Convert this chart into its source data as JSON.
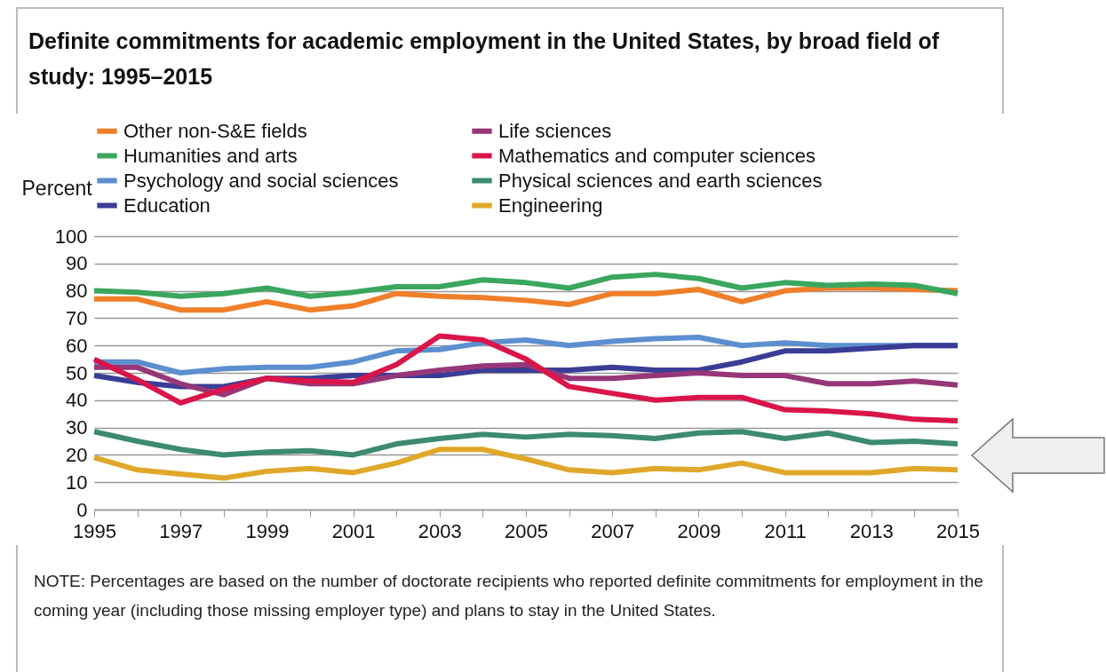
{
  "chart_data": {
    "type": "line",
    "title": "Definite commitments for academic employment in the United States, by broad field of study: 1995–2015",
    "ylabel": "Percent",
    "x": [
      1995,
      1996,
      1997,
      1998,
      1999,
      2000,
      2001,
      2002,
      2003,
      2004,
      2005,
      2006,
      2007,
      2008,
      2009,
      2010,
      2011,
      2012,
      2013,
      2014,
      2015
    ],
    "series": [
      {
        "name": "Other non-S&E fields",
        "color": "#f07f2a",
        "values": [
          77,
          77,
          73,
          73,
          76,
          73,
          74.5,
          79,
          78,
          77.5,
          76.5,
          75,
          79,
          79,
          80.5,
          76,
          80,
          81,
          81,
          80.5,
          80
        ]
      },
      {
        "name": "Humanities and arts",
        "color": "#3aa65e",
        "values": [
          80,
          79.5,
          78,
          79,
          81,
          78,
          79.5,
          81.5,
          81.5,
          84,
          83,
          81,
          85,
          86,
          84.5,
          81,
          83,
          82,
          82.5,
          82,
          79
        ]
      },
      {
        "name": "Psychology and social sciences",
        "color": "#5b8fd0",
        "values": [
          54,
          54,
          50,
          51.5,
          52,
          52,
          54,
          58,
          58.5,
          61,
          62,
          60,
          61.5,
          62.5,
          63,
          60,
          61,
          60,
          60,
          60,
          60
        ]
      },
      {
        "name": "Education",
        "color": "#3a3d96",
        "values": [
          49,
          46.5,
          45,
          45,
          48,
          48,
          49,
          49,
          49,
          51,
          51,
          51,
          52,
          51,
          51,
          54,
          58,
          58,
          59,
          60,
          60
        ]
      },
      {
        "name": "Life sciences",
        "color": "#963778",
        "values": [
          52,
          52,
          46,
          42,
          48,
          46,
          46,
          49,
          51,
          52.5,
          53,
          48,
          48,
          49,
          50,
          49,
          49,
          46,
          46,
          47,
          45.5
        ]
      },
      {
        "name": "Mathematics and computer sciences",
        "color": "#d9154a",
        "values": [
          55,
          47.5,
          39,
          44,
          48,
          47,
          46.5,
          53,
          63.5,
          62,
          55,
          45,
          42.5,
          40,
          41,
          41,
          36.5,
          36,
          35,
          33,
          32.5
        ]
      },
      {
        "name": "Physical sciences and earth sciences",
        "color": "#3d8a72",
        "values": [
          28.5,
          25,
          22,
          20,
          21,
          21.5,
          20,
          24,
          26,
          27.5,
          26.5,
          27.5,
          27,
          26,
          28,
          28.5,
          26,
          28,
          24.5,
          25,
          24
        ]
      },
      {
        "name": "Engineering",
        "color": "#e0a82a",
        "values": [
          19,
          14.5,
          13,
          11.5,
          14,
          15,
          13.5,
          17,
          22,
          22,
          18.5,
          14.5,
          13.5,
          15,
          14.5,
          17,
          13.5,
          13.5,
          13.5,
          15,
          14.5
        ]
      }
    ],
    "xlim": [
      1995,
      2015
    ],
    "xticks": [
      1995,
      {
        "value": 1996,
        "label": null
      },
      1997,
      {
        "value": 1998,
        "label": null
      },
      1999,
      {
        "value": 2000,
        "label": null
      },
      2001,
      {
        "value": 2002,
        "label": null
      },
      2003,
      {
        "value": 2004,
        "label": null
      },
      2005,
      {
        "value": 2006,
        "label": null
      },
      2007,
      {
        "value": 2008,
        "label": null
      },
      2009,
      {
        "value": 2010,
        "label": null
      },
      2011,
      {
        "value": 2012,
        "label": null
      },
      2013,
      {
        "value": 2014,
        "label": null
      },
      2015
    ],
    "ylim": [
      0,
      100
    ],
    "yticks": [
      0,
      10,
      20,
      30,
      40,
      50,
      60,
      70,
      80,
      90,
      100
    ],
    "grid": "y",
    "legend": "top",
    "line_style": "solid",
    "marker": "none",
    "annotations": [
      "NOTE: Percentages are based on the number of doctorate recipients who reported definite commitments for employment in the coming year (including those missing employer type) and plans to stay in the United States."
    ]
  }
}
